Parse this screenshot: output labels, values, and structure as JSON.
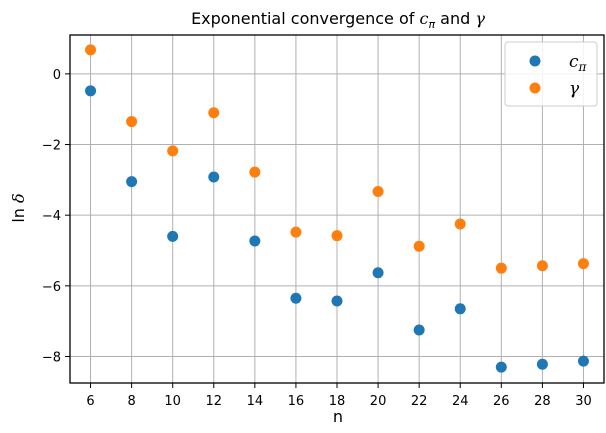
{
  "chart_data": {
    "type": "scatter",
    "title_text": "Exponential convergence of ",
    "title_sym1": "c",
    "title_sub1": "π",
    "title_mid": " and ",
    "title_sym2": "γ",
    "xlabel": "n",
    "ylabel_text": "ln ",
    "ylabel_sym": "δ",
    "x": [
      6,
      8,
      10,
      12,
      14,
      16,
      18,
      20,
      22,
      24,
      26,
      28,
      30
    ],
    "xlim": [
      5,
      31
    ],
    "ylim": [
      -8.75,
      1.1
    ],
    "xticks": [
      "6",
      "8",
      "10",
      "12",
      "14",
      "16",
      "18",
      "20",
      "22",
      "24",
      "26",
      "28",
      "30"
    ],
    "yticks": [
      "−8",
      "−6",
      "−4",
      "−2",
      "0"
    ],
    "grid": true,
    "legend_position": "top-right",
    "series": [
      {
        "name_sym": "c",
        "name_sub": "π",
        "color": "#1f77b4",
        "values": [
          -0.48,
          -3.05,
          -4.6,
          -2.92,
          -4.73,
          -6.35,
          -6.43,
          -5.63,
          -7.25,
          -6.65,
          -8.3,
          -8.22,
          -8.13
        ]
      },
      {
        "name_sym": "γ",
        "name_sub": "",
        "color": "#ff7f0e",
        "values": [
          0.68,
          -1.35,
          -2.18,
          -1.1,
          -2.78,
          -4.48,
          -4.58,
          -3.33,
          -4.88,
          -4.25,
          -5.5,
          -5.43,
          -5.37
        ]
      }
    ]
  }
}
